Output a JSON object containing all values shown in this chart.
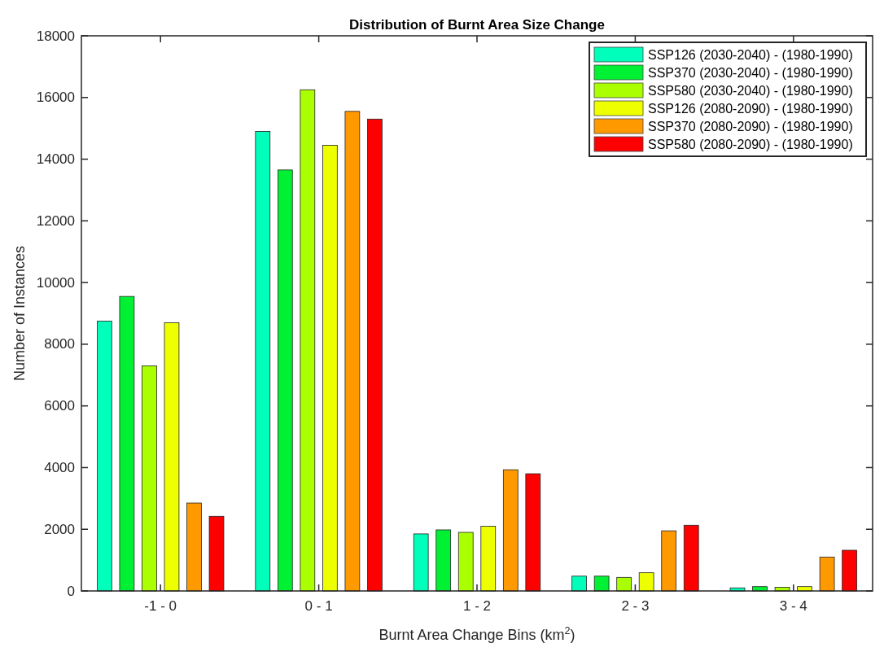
{
  "chart_data": {
    "type": "bar",
    "title": "Distribution of Burnt Area Size Change",
    "xlabel": "Burnt Area Change Bins (km$^{2}$)",
    "ylabel": "Number of Instances",
    "categories": [
      "-1 - 0",
      "0 - 1",
      "1 - 2",
      "2 - 3",
      "3 - 4"
    ],
    "series": [
      {
        "name": "SSP126 (2030-2040) - (1980-1990)",
        "color": "#00ffbb",
        "values": [
          8750,
          14900,
          1850,
          480,
          100
        ]
      },
      {
        "name": "SSP370 (2030-2040) - (1980-1990)",
        "color": "#00f033",
        "values": [
          9550,
          13650,
          1980,
          480,
          140
        ]
      },
      {
        "name": "SSP580 (2030-2040) - (1980-1990)",
        "color": "#aaff00",
        "values": [
          7300,
          16250,
          1900,
          440,
          120
        ]
      },
      {
        "name": "SSP126 (2080-2090) - (1980-1990)",
        "color": "#eeff00",
        "values": [
          8700,
          14450,
          2100,
          590,
          140
        ]
      },
      {
        "name": "SSP370 (2080-2090) - (1980-1990)",
        "color": "#ff9900",
        "values": [
          2850,
          15550,
          3930,
          1950,
          1100
        ]
      },
      {
        "name": "SSP580 (2080-2090) - (1980-1990)",
        "color": "#ff0000",
        "values": [
          2420,
          15300,
          3800,
          2130,
          1320
        ]
      }
    ],
    "ylim": [
      0,
      18000
    ],
    "yticks": [
      0,
      2000,
      4000,
      6000,
      8000,
      10000,
      12000,
      14000,
      16000,
      18000
    ],
    "grid": false,
    "legend": "top right"
  }
}
